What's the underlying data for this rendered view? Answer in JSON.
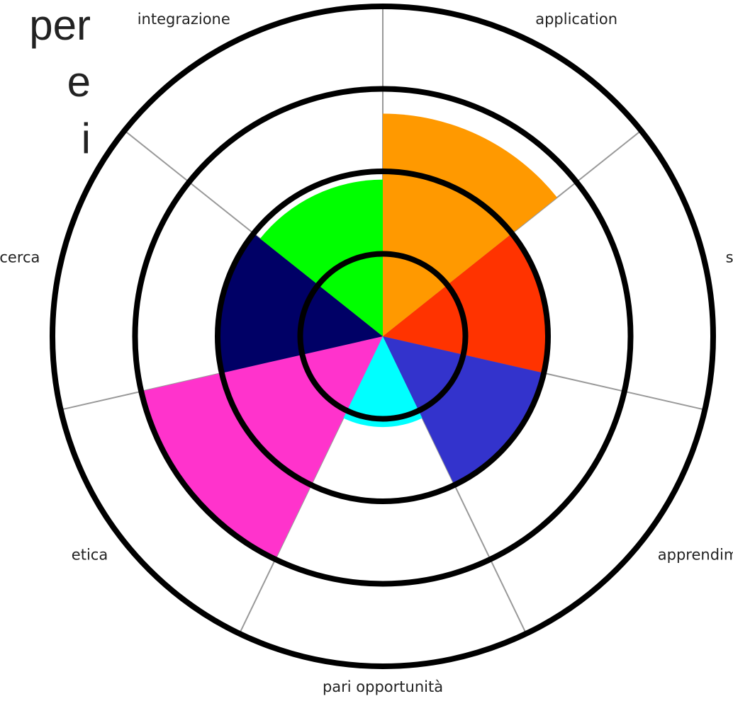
{
  "chart_data": {
    "type": "polar",
    "categories": [
      "application",
      "servizi",
      "apprendimenti",
      "pari opportunità",
      "etica",
      "ricerca",
      "integrazione"
    ],
    "values": [
      2.7,
      2.0,
      2.0,
      1.1,
      3.0,
      2.0,
      1.9
    ],
    "colors": [
      "#ff9900",
      "#ff3300",
      "#3333cc",
      "#00ffff",
      "#ff33cc",
      "#000066",
      "#00ff00"
    ],
    "ylim": [
      0,
      4
    ],
    "yticks": [
      1,
      2,
      3,
      4
    ],
    "grid": true,
    "side_text": [
      "per",
      "e",
      "i"
    ]
  }
}
